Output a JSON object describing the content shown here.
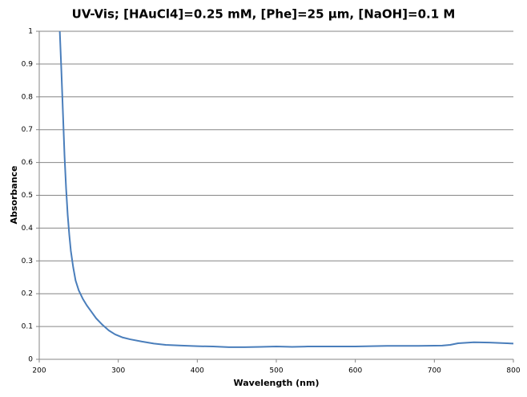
{
  "chart_data": {
    "type": "line",
    "title": "UV-Vis; [HAuCl4]=0.25 mM, [Phe]=25 µm, [NaOH]=0.1 M",
    "x_label": "Wavelength (nm)",
    "y_label": "Absorbance",
    "xlim": [
      200,
      800
    ],
    "ylim": [
      0,
      1
    ],
    "xticks": [
      200,
      300,
      400,
      500,
      600,
      700,
      800
    ],
    "yticks": [
      0,
      0.1,
      0.2,
      0.3,
      0.4,
      0.5,
      0.6,
      0.7,
      0.8,
      0.9,
      1
    ],
    "grid": true,
    "x": [
      226,
      228,
      230,
      232,
      234,
      236,
      238,
      240,
      243,
      246,
      250,
      255,
      260,
      266,
      272,
      280,
      288,
      296,
      305,
      315,
      330,
      345,
      360,
      380,
      400,
      420,
      440,
      460,
      480,
      500,
      520,
      540,
      560,
      600,
      640,
      680,
      710,
      720,
      730,
      750,
      770,
      800
    ],
    "series": [
      {
        "color": "#4a7ebb",
        "values": [
          1.0,
          0.88,
          0.75,
          0.62,
          0.52,
          0.44,
          0.38,
          0.33,
          0.28,
          0.24,
          0.21,
          0.185,
          0.165,
          0.145,
          0.125,
          0.105,
          0.088,
          0.076,
          0.067,
          0.061,
          0.054,
          0.048,
          0.044,
          0.042,
          0.04,
          0.039,
          0.037,
          0.037,
          0.038,
          0.039,
          0.038,
          0.039,
          0.039,
          0.039,
          0.041,
          0.041,
          0.042,
          0.044,
          0.049,
          0.052,
          0.051,
          0.048
        ]
      }
    ]
  }
}
